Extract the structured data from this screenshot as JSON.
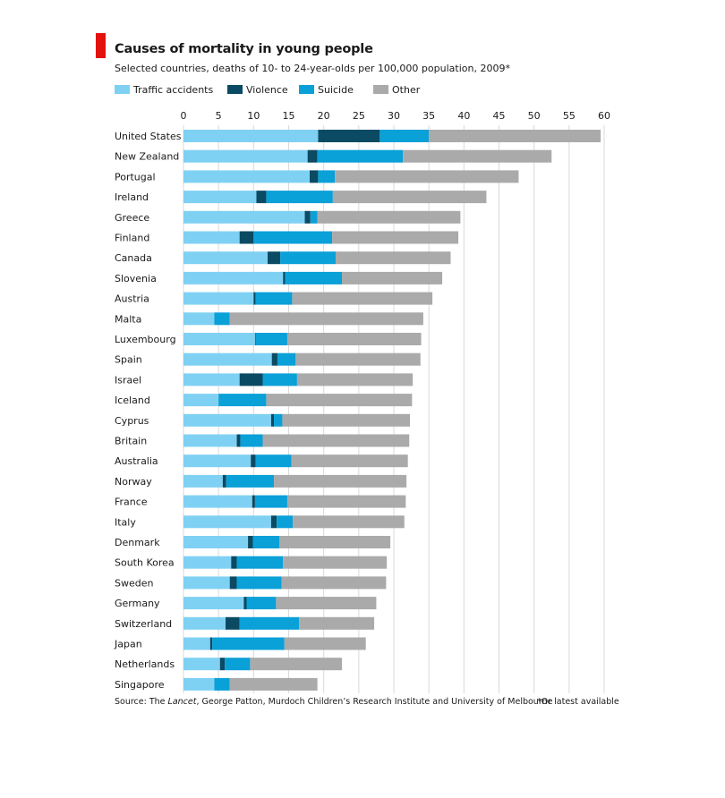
{
  "chart_data": {
    "type": "bar",
    "orientation": "horizontal",
    "stacked": true,
    "title": "Causes of mortality in young people",
    "subtitle": "Selected countries, deaths of 10- to 24-year-olds per 100,000 population, 2009*",
    "xlim": [
      0,
      60
    ],
    "xticks": [
      0,
      5,
      10,
      15,
      20,
      25,
      30,
      35,
      40,
      45,
      50,
      55,
      60
    ],
    "grid": "vertical",
    "legend_position": "top",
    "categories": [
      "United States",
      "New Zealand",
      "Portugal",
      "Ireland",
      "Greece",
      "Finland",
      "Canada",
      "Slovenia",
      "Austria",
      "Malta",
      "Luxembourg",
      "Spain",
      "Israel",
      "Iceland",
      "Cyprus",
      "Britain",
      "Australia",
      "Norway",
      "France",
      "Italy",
      "Denmark",
      "South Korea",
      "Sweden",
      "Germany",
      "Switzerland",
      "Japan",
      "Netherlands",
      "Singapore"
    ],
    "series": [
      {
        "name": "Traffic accidents",
        "color": "#7fd1f3",
        "values": [
          19.2,
          17.7,
          18.0,
          10.4,
          17.3,
          8.0,
          12.0,
          14.2,
          10.0,
          4.4,
          10.2,
          12.6,
          8.0,
          5.0,
          12.5,
          7.6,
          9.6,
          5.6,
          9.8,
          12.5,
          9.2,
          6.8,
          6.6,
          8.6,
          6.0,
          3.8,
          5.2,
          4.4
        ]
      },
      {
        "name": "Violence",
        "color": "#0b4a63",
        "values": [
          8.8,
          1.4,
          1.2,
          1.4,
          0.8,
          2.0,
          1.8,
          0.3,
          0.3,
          0.0,
          0.1,
          0.8,
          3.3,
          0.0,
          0.4,
          0.5,
          0.7,
          0.5,
          0.4,
          0.8,
          0.7,
          0.8,
          1.0,
          0.4,
          2.0,
          0.3,
          0.7,
          0.0
        ]
      },
      {
        "name": "Suicide",
        "color": "#0aa0d8",
        "values": [
          7.0,
          12.2,
          2.4,
          9.5,
          1.0,
          11.2,
          7.9,
          8.1,
          5.2,
          2.2,
          4.5,
          2.6,
          4.9,
          6.8,
          1.2,
          3.2,
          5.1,
          6.8,
          4.6,
          2.3,
          3.8,
          6.6,
          6.4,
          4.2,
          8.5,
          10.3,
          3.6,
          2.2
        ]
      },
      {
        "name": "Other",
        "color": "#aaaaaa",
        "values": [
          24.5,
          21.2,
          26.2,
          21.9,
          20.4,
          18.0,
          16.4,
          14.3,
          20.0,
          27.6,
          19.1,
          17.8,
          16.5,
          20.8,
          18.2,
          20.9,
          16.6,
          18.9,
          16.9,
          15.9,
          15.8,
          14.8,
          14.9,
          14.3,
          10.7,
          11.6,
          13.1,
          12.5
        ]
      }
    ],
    "source_prefix": "Source: The ",
    "source_italic": "Lancet",
    "source_suffix": ", George Patton, Murdoch Children’s Research Institute and University of Melbourne",
    "footnote": "*Or latest available"
  }
}
